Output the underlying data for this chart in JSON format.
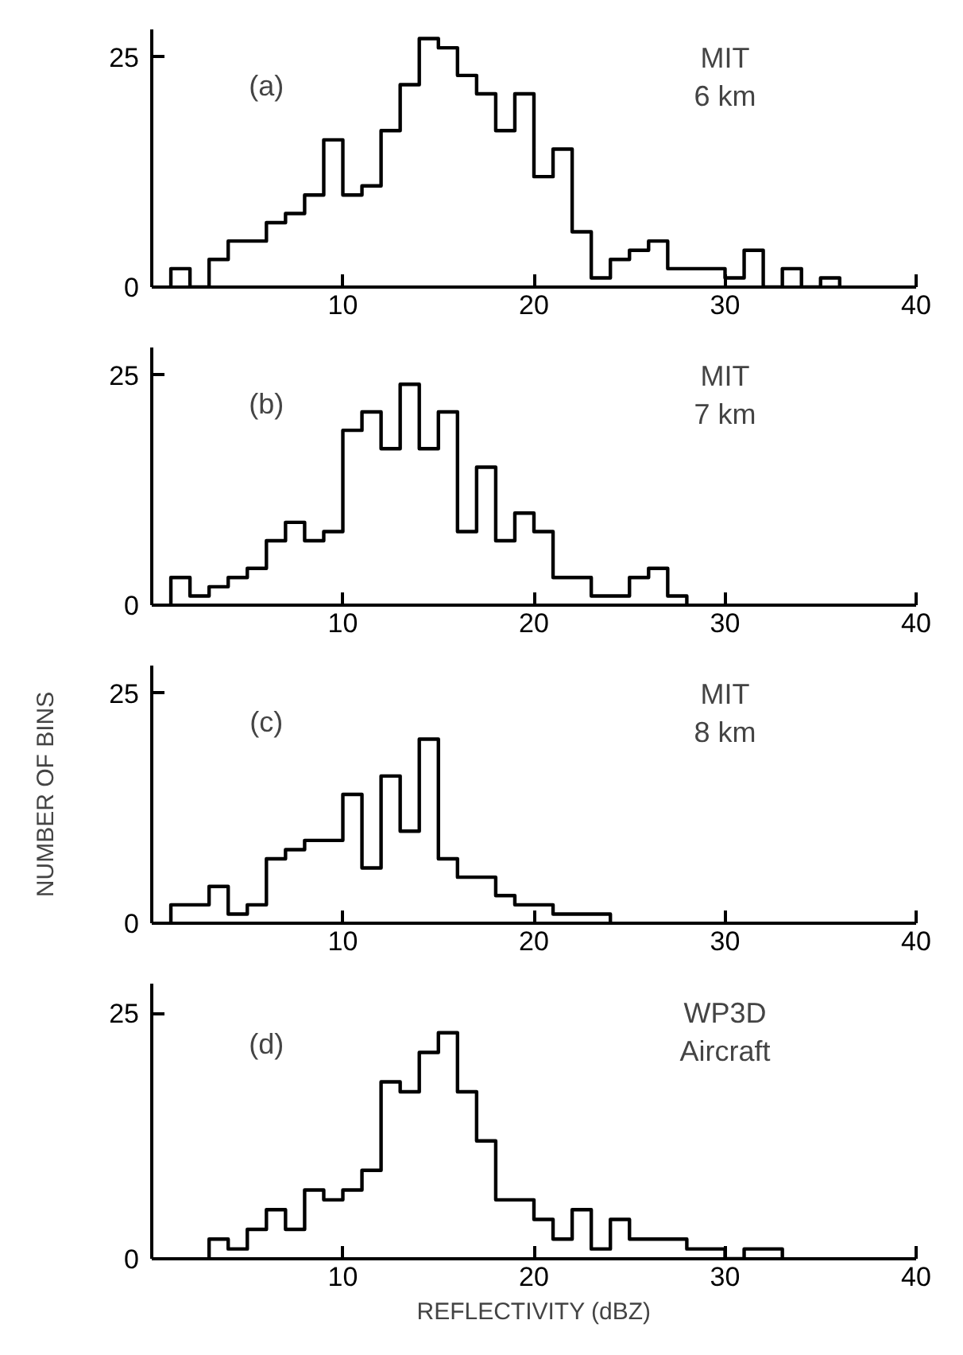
{
  "chart_data": [
    {
      "type": "histogram",
      "annotations": [
        "(a)",
        "MIT\n6 km"
      ],
      "bins": [
        1,
        2,
        3,
        4,
        5,
        6,
        7,
        8,
        9,
        10,
        11,
        12,
        13,
        14,
        15,
        16,
        17,
        18,
        19,
        20,
        21,
        22,
        23,
        24,
        25,
        26,
        27,
        28,
        29,
        30,
        31,
        32,
        33,
        34,
        35,
        36
      ],
      "values": [
        2,
        0,
        3,
        5,
        5,
        7,
        8,
        10,
        16,
        10,
        11,
        17,
        22,
        27,
        26,
        23,
        21,
        17,
        21,
        12,
        15,
        6,
        1,
        3,
        4,
        5,
        2,
        2,
        2,
        1,
        4,
        0,
        2,
        0,
        1
      ],
      "color": "#000000",
      "xlim": [
        0,
        40
      ],
      "xticks": [
        10,
        20,
        30,
        40
      ],
      "ylim": [
        0,
        28
      ],
      "yticks": [
        0,
        25
      ],
      "grid": false
    },
    {
      "type": "histogram",
      "annotations": [
        "(b)",
        "MIT\n7 km"
      ],
      "bins": [
        1,
        2,
        3,
        4,
        5,
        6,
        7,
        8,
        9,
        10,
        11,
        12,
        13,
        14,
        15,
        16,
        17,
        18,
        19,
        20,
        21,
        22,
        23,
        24,
        25,
        26,
        27,
        28
      ],
      "values": [
        3,
        1,
        2,
        3,
        4,
        7,
        9,
        7,
        8,
        19,
        21,
        17,
        24,
        17,
        21,
        8,
        15,
        7,
        10,
        8,
        3,
        3,
        1,
        1,
        3,
        4,
        1
      ],
      "color": "#000000",
      "xlim": [
        0,
        40
      ],
      "xticks": [
        10,
        20,
        30,
        40
      ],
      "ylim": [
        0,
        28
      ],
      "yticks": [
        0,
        25
      ],
      "grid": false
    },
    {
      "type": "histogram",
      "annotations": [
        "(c)",
        "MIT\n8 km"
      ],
      "ylabel": "NUMBER OF BINS",
      "bins": [
        1,
        2,
        3,
        4,
        5,
        6,
        7,
        8,
        9,
        10,
        11,
        12,
        13,
        14,
        15,
        16,
        17,
        18,
        19,
        20,
        21,
        22,
        23,
        24
      ],
      "values": [
        2,
        2,
        4,
        1,
        2,
        7,
        8,
        9,
        9,
        14,
        6,
        16,
        10,
        20,
        7,
        5,
        5,
        3,
        2,
        2,
        1,
        1,
        1
      ],
      "color": "#000000",
      "xlim": [
        0,
        40
      ],
      "xticks": [
        10,
        20,
        30,
        40
      ],
      "ylim": [
        0,
        28
      ],
      "yticks": [
        0,
        25
      ],
      "grid": false
    },
    {
      "type": "histogram",
      "annotations": [
        "(d)",
        "WP3D\nAircraft"
      ],
      "xlabel": "REFLECTIVITY (dBZ)",
      "bins": [
        3,
        4,
        5,
        6,
        7,
        8,
        9,
        10,
        11,
        12,
        13,
        14,
        15,
        16,
        17,
        18,
        19,
        20,
        21,
        22,
        23,
        24,
        25,
        26,
        27,
        28,
        29,
        30,
        31,
        32,
        33
      ],
      "values": [
        2,
        1,
        3,
        5,
        3,
        7,
        6,
        7,
        9,
        18,
        17,
        21,
        23,
        17,
        12,
        6,
        6,
        4,
        2,
        5,
        1,
        4,
        2,
        2,
        2,
        1,
        1,
        0,
        1,
        1
      ],
      "color": "#000000",
      "xlim": [
        0,
        40
      ],
      "xticks": [
        10,
        20,
        30,
        40
      ],
      "ylim": [
        0,
        28
      ],
      "yticks": [
        0,
        25
      ],
      "grid": false
    }
  ]
}
